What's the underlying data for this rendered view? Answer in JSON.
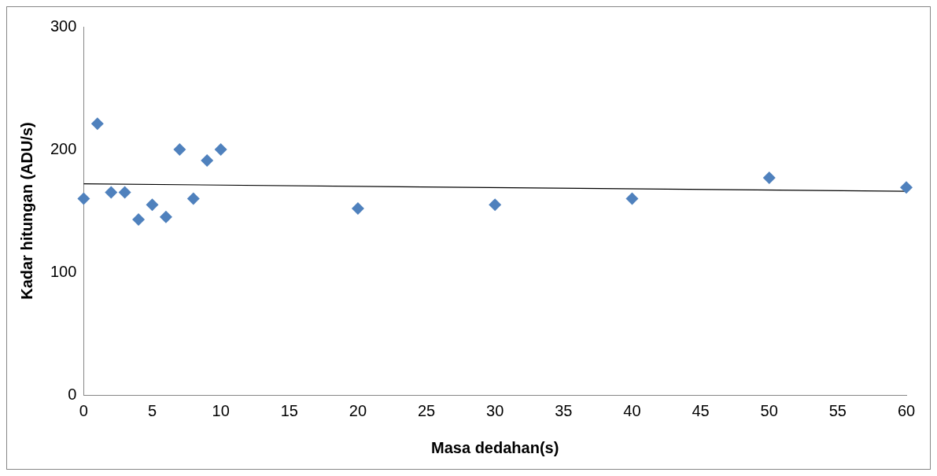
{
  "chart_data": {
    "type": "scatter",
    "xlabel": "Masa dedahan(s)",
    "ylabel": "Kadar hitungan (ADU/s)",
    "xlim": [
      0,
      60
    ],
    "xticks": [
      0,
      5,
      10,
      15,
      20,
      25,
      30,
      35,
      40,
      45,
      50,
      55,
      60
    ],
    "ylim": [
      0,
      300
    ],
    "yticks": [
      0,
      100,
      200,
      300
    ],
    "grid": false,
    "legend": false,
    "marker": "diamond",
    "series": [
      {
        "type": "scatter",
        "color": "#4f81bd",
        "x": [
          0,
          1,
          2,
          3,
          4,
          5,
          6,
          7,
          8,
          9,
          10,
          20,
          30,
          40,
          50,
          60
        ],
        "values": [
          160,
          221,
          165,
          165,
          143,
          155,
          145,
          200,
          160,
          191,
          200,
          152,
          155,
          160,
          177,
          169
        ]
      },
      {
        "type": "line",
        "color": "#000000",
        "line_style": "solid",
        "marker": "none",
        "x": [
          0,
          60
        ],
        "values": [
          172,
          166
        ]
      }
    ]
  }
}
